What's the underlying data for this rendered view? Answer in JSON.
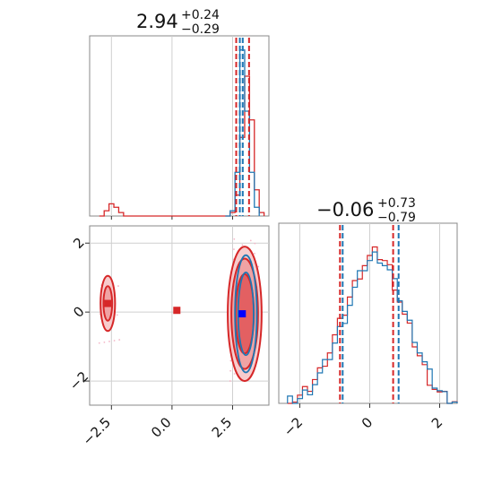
{
  "colors": {
    "red": "#d62728",
    "blue": "#1f77b4",
    "grid": "#cfcfcf",
    "fill_red": "#ee8f90",
    "fill_blue": "#8fb9de"
  },
  "chart_data": [
    {
      "type": "histogram",
      "panel": "top-left (x marginal)",
      "title_main": "2.94",
      "title_sup": "+0.24",
      "title_sub": "−0.29",
      "xlim": [
        -3.4,
        4.0
      ],
      "vlines_red": [
        2.65,
        3.18
      ],
      "vlines_blue": [
        2.8,
        2.92
      ],
      "series": [
        {
          "name": "",
          "color": "#d62728",
          "bins": [
            [
              -3.0,
              0
            ],
            [
              -2.8,
              0.03
            ],
            [
              -2.6,
              0.07
            ],
            [
              -2.4,
              0.05
            ],
            [
              -2.2,
              0.02
            ],
            [
              -2.0,
              0
            ],
            [
              2.2,
              0
            ],
            [
              2.4,
              0.02
            ],
            [
              2.6,
              0.12
            ],
            [
              2.8,
              0.45
            ],
            [
              3.0,
              0.8
            ],
            [
              3.2,
              0.55
            ],
            [
              3.4,
              0.15
            ],
            [
              3.6,
              0.02
            ],
            [
              3.8,
              0
            ]
          ]
        },
        {
          "name": "",
          "color": "#1f77b4",
          "bins": [
            [
              2.2,
              0
            ],
            [
              2.4,
              0.03
            ],
            [
              2.6,
              0.25
            ],
            [
              2.8,
              0.95
            ],
            [
              3.0,
              0.6
            ],
            [
              3.2,
              0.25
            ],
            [
              3.4,
              0.05
            ],
            [
              3.6,
              0
            ]
          ]
        }
      ]
    },
    {
      "type": "histogram",
      "panel": "bottom-right (y marginal)",
      "title_main": "−0.06",
      "title_sup": "+0.73",
      "title_sub": "−0.79",
      "xlim": [
        -2.6,
        2.5
      ],
      "xticks": [
        "−2",
        "0",
        "2"
      ],
      "vlines_red": [
        -0.85,
        0.67
      ],
      "vlines_blue": [
        -0.85,
        0.75
      ],
      "series": [
        {
          "name": "",
          "color": "#d62728",
          "values": [
            0.01,
            0.02,
            0.04,
            0.07,
            0.1,
            0.15,
            0.2,
            0.27,
            0.33,
            0.42,
            0.5,
            0.58,
            0.67,
            0.75,
            0.82,
            0.88,
            0.92,
            0.95,
            0.93,
            0.9,
            0.85,
            0.75,
            0.65,
            0.55,
            0.47,
            0.38,
            0.3,
            0.22,
            0.15,
            0.1,
            0.06,
            0.04,
            0.02,
            0.01
          ]
        },
        {
          "name": "",
          "color": "#1f77b4",
          "values": [
            0.01,
            0.02,
            0.03,
            0.06,
            0.09,
            0.13,
            0.18,
            0.24,
            0.3,
            0.38,
            0.46,
            0.54,
            0.63,
            0.72,
            0.8,
            0.86,
            0.9,
            0.93,
            0.92,
            0.88,
            0.83,
            0.75,
            0.67,
            0.58,
            0.5,
            0.42,
            0.33,
            0.25,
            0.18,
            0.12,
            0.08,
            0.05,
            0.03,
            0.02
          ]
        }
      ]
    },
    {
      "type": "contour-2d",
      "panel": "bottom-left (x vs y)",
      "xlim": [
        -3.4,
        4.0
      ],
      "ylim": [
        -2.7,
        2.5
      ],
      "xticks": [
        "−2.5",
        "0.0",
        "2.5"
      ],
      "yticks": [
        "2",
        "0",
        "−2"
      ],
      "markers": [
        {
          "x": -2.65,
          "y": 0.25,
          "color": "#d62728"
        },
        {
          "x": 0.2,
          "y": 0.05,
          "color": "#d62728"
        },
        {
          "x": 2.9,
          "y": -0.05,
          "color": "#0000ff"
        }
      ],
      "blobs": [
        {
          "cx": 3.0,
          "cy": -0.05,
          "rx": [
            0.7,
            0.55,
            0.38
          ],
          "ry": [
            1.95,
            1.6,
            1.15
          ],
          "color": "#d62728"
        },
        {
          "cx": 3.05,
          "cy": -0.05,
          "rx": [
            0.45,
            0.32
          ],
          "ry": [
            1.7,
            1.2
          ],
          "color": "#1f77b4"
        },
        {
          "cx": -2.65,
          "cy": 0.25,
          "rx": [
            0.3,
            0.18
          ],
          "ry": [
            0.8,
            0.5
          ],
          "color": "#d62728"
        }
      ]
    }
  ]
}
